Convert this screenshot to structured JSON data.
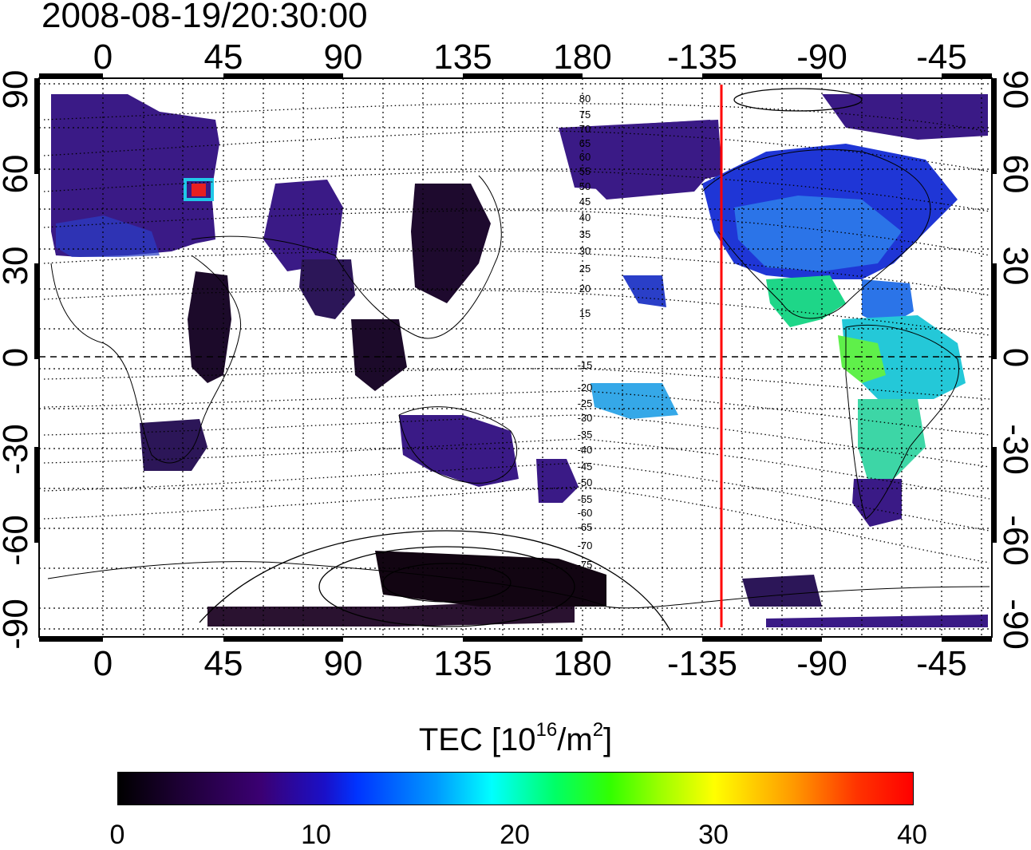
{
  "title": "2008-08-19/20:30:00",
  "map": {
    "lon_top_labels": [
      "0",
      "45",
      "90",
      "135",
      "180",
      "-135",
      "-90",
      "-45"
    ],
    "lon_bottom_labels": [
      "0",
      "45",
      "90",
      "135",
      "180",
      "-135",
      "-90",
      "-45"
    ],
    "lat_left_labels": [
      "90",
      "60",
      "30",
      "0",
      "-30",
      "-60",
      "-90"
    ],
    "lat_right_labels": [
      "90",
      "60",
      "30",
      "0",
      "-30",
      "-60",
      "-90"
    ],
    "magnetic_lat_labels": [
      "80",
      "75",
      "70",
      "65",
      "60",
      "55",
      "50",
      "45",
      "40",
      "35",
      "30",
      "25",
      "20",
      "15",
      "-15",
      "-20",
      "-25",
      "-30",
      "-35",
      "-40",
      "-45",
      "-50",
      "-55",
      "-60",
      "-65",
      "-70",
      "-75"
    ],
    "terminator_color": "#ff0000",
    "grid": "dotted"
  },
  "colorbar": {
    "title_prefix": "TEC  [10",
    "title_exp1": "16",
    "title_mid": "/m",
    "title_exp2": "2",
    "title_suffix": "]",
    "ticks": [
      "0",
      "10",
      "20",
      "30",
      "40"
    ],
    "range": [
      0,
      40
    ],
    "colormap": [
      "#000000",
      "#3b0073",
      "#0033ff",
      "#00ffff",
      "#33ff00",
      "#ffff00",
      "#ff9900",
      "#ff0000"
    ]
  }
}
